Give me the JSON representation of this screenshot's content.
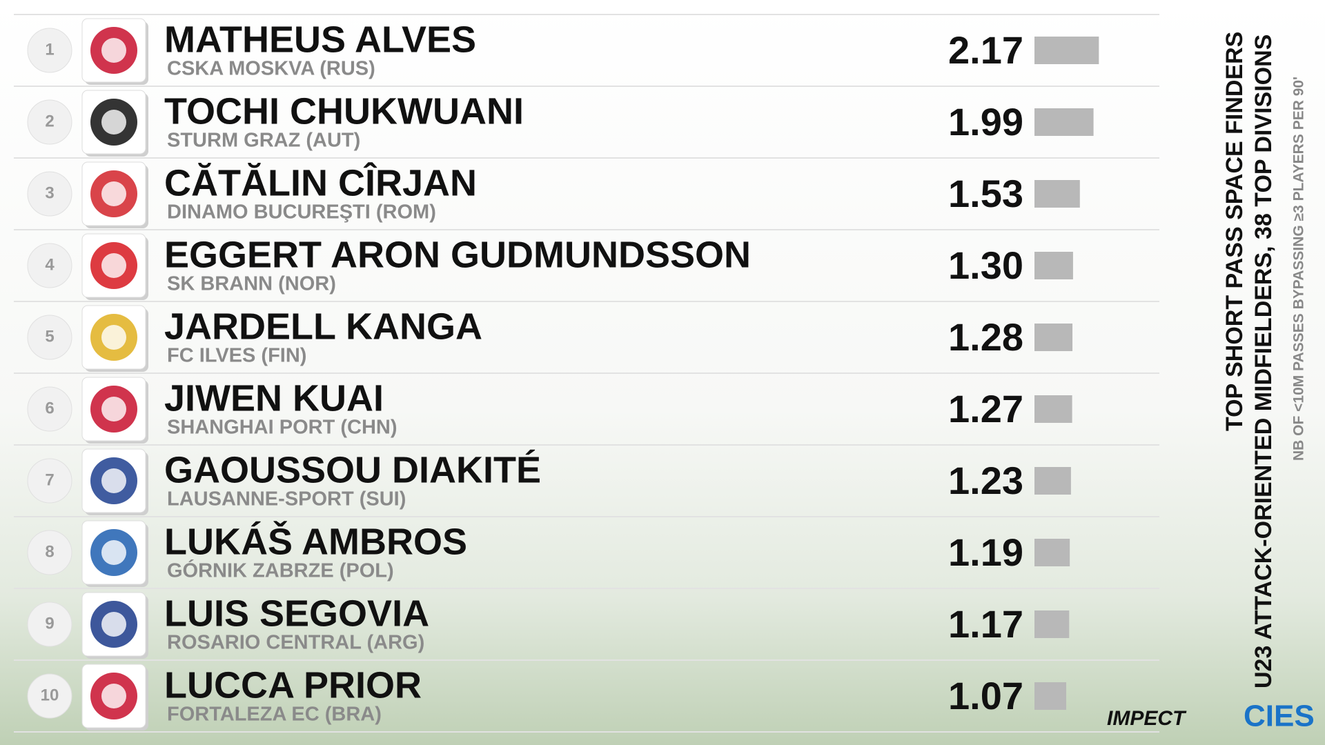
{
  "chart_data": {
    "type": "bar",
    "title": "TOP SHORT PASS SPACE FINDERS",
    "subtitle": "U23 ATTACK-ORIENTED MIDFIELDERS, 38 TOP DIVISIONS",
    "note": "NB OF <10M PASSES BYPASSING ≥3 PLAYERS PER 90'",
    "ranks": [
      1,
      2,
      3,
      4,
      5,
      6,
      7,
      8,
      9,
      10
    ],
    "categories": [
      "MATHEUS ALVES",
      "TOCHI CHUKWUANI",
      "CĂTĂLIN CÎRJAN",
      "EGGERT ARON GUDMUNDSSON",
      "JARDELL KANGA",
      "JIWEN KUAI",
      "GAOUSSOU DIAKITÉ",
      "LUKÁŠ AMBROS",
      "LUIS SEGOVIA",
      "LUCCA PRIOR"
    ],
    "clubs": [
      "CSKA MOSKVA (RUS)",
      "STURM GRAZ (AUT)",
      "DINAMO BUCUREŞTI (ROM)",
      "SK BRANN (NOR)",
      "FC ILVES (FIN)",
      "SHANGHAI PORT (CHN)",
      "LAUSANNE-SPORT (SUI)",
      "GÓRNIK ZABRZE (POL)",
      "ROSARIO CENTRAL (ARG)",
      "FORTALEZA EC (BRA)"
    ],
    "values": [
      2.17,
      1.99,
      1.53,
      1.3,
      1.28,
      1.27,
      1.23,
      1.19,
      1.17,
      1.07
    ],
    "value_labels": [
      "2.17",
      "1.99",
      "1.53",
      "1.30",
      "1.28",
      "1.27",
      "1.23",
      "1.19",
      "1.17",
      "1.07"
    ],
    "color": "#b8b8b8"
  },
  "footer": {
    "partner": "IMPECT",
    "brand": "CIES"
  }
}
